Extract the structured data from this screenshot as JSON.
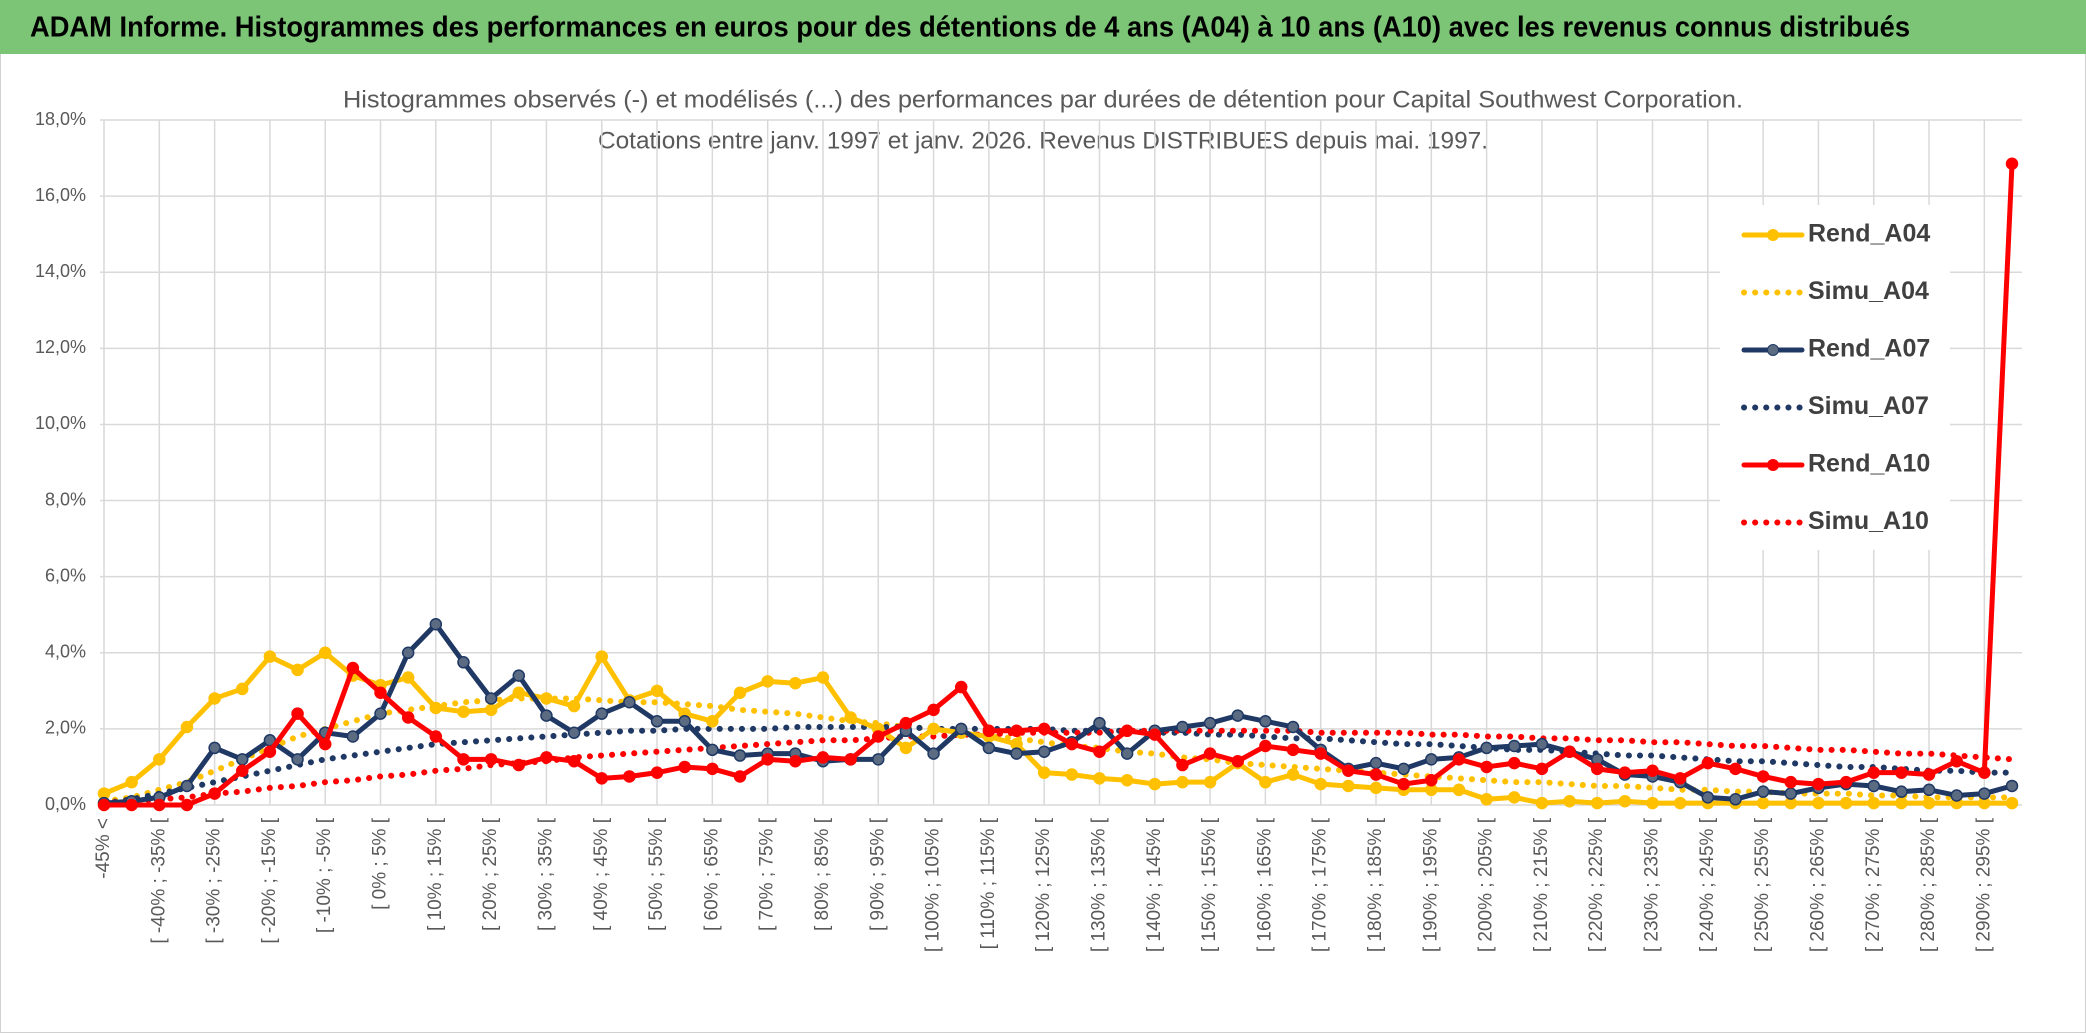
{
  "header": {
    "title": "ADAM Informe. Histogrammes des performances en euros pour des détentions de 4 ans (A04) à 10 ans (A10) avec les revenus connus distribués"
  },
  "chart_data": {
    "type": "line",
    "title": "Histogrammes observés (-) et modélisés (...) des performances par durées de détention pour Capital Southwest Corporation.",
    "subtitle": "Cotations entre janv. 1997 et janv. 2026. Revenus DISTRIBUES depuis mai. 1997.",
    "categories": [
      "-45% <",
      null,
      "[ -40% ; -35% [",
      null,
      "[ -30% ; -25% [",
      null,
      "[ -20% ; -15% [",
      null,
      "[ -10% ; -5% [",
      null,
      "[ 0% ; 5% [",
      null,
      "[ 10% ; 15% [",
      null,
      "[ 20% ; 25% [",
      null,
      "[ 30% ; 35% [",
      null,
      "[ 40% ; 45% [",
      null,
      "[ 50% ; 55% [",
      null,
      "[ 60% ; 65% [",
      null,
      "[ 70% ; 75% [",
      null,
      "[ 80% ; 85% [",
      null,
      "[ 90% ; 95% [",
      null,
      "[ 100% ; 105% [",
      null,
      "[ 110% ; 115% [",
      null,
      "[ 120% ; 125% [",
      null,
      "[ 130% ; 135% [",
      null,
      "[ 140% ; 145% [",
      null,
      "[ 150% ; 155% [",
      null,
      "[ 160% ; 165% [",
      null,
      "[ 170% ; 175% [",
      null,
      "[ 180% ; 185% [",
      null,
      "[ 190% ; 195% [",
      null,
      "[ 200% ; 205% [",
      null,
      "[ 210% ; 215% [",
      null,
      "[ 220% ; 225% [",
      null,
      "[ 230% ; 235% [",
      null,
      "[ 240% ; 245% [",
      null,
      "[ 250% ; 255% [",
      null,
      "[ 260% ; 265% [",
      null,
      "[ 270% ; 275% [",
      null,
      "[ 280% ; 285% [",
      null,
      "[ 290% ; 295% [",
      null
    ],
    "series": [
      {
        "name": "Rend_A04",
        "color": "#FFC000",
        "line_style": "solid",
        "marker": true,
        "values": [
          0.3,
          0.6,
          1.2,
          2.05,
          2.8,
          3.05,
          3.9,
          3.55,
          4.0,
          3.4,
          3.15,
          3.35,
          2.55,
          2.45,
          2.5,
          2.95,
          2.8,
          2.6,
          3.9,
          2.75,
          3.0,
          2.4,
          2.2,
          2.95,
          3.25,
          3.2,
          3.35,
          2.3,
          2.0,
          1.5,
          2.0,
          1.9,
          1.8,
          1.6,
          0.85,
          0.8,
          0.7,
          0.65,
          0.55,
          0.6,
          0.6,
          1.1,
          0.6,
          0.8,
          0.55,
          0.5,
          0.45,
          0.4,
          0.4,
          0.4,
          0.15,
          0.2,
          0.05,
          0.1,
          0.05,
          0.1,
          0.05,
          0.05,
          0.05,
          0.05,
          0.05,
          0.05,
          0.05,
          0.05,
          0.05,
          0.05,
          0.05,
          0.05,
          0.05,
          0.05
        ]
      },
      {
        "name": "Simu_A04",
        "color": "#FFC000",
        "line_style": "dotted",
        "marker": false,
        "values": [
          0.1,
          0.2,
          0.4,
          0.6,
          0.9,
          1.2,
          1.5,
          1.8,
          2.0,
          2.2,
          2.4,
          2.5,
          2.6,
          2.7,
          2.75,
          2.8,
          2.8,
          2.8,
          2.75,
          2.7,
          2.7,
          2.65,
          2.6,
          2.5,
          2.45,
          2.4,
          2.3,
          2.2,
          2.15,
          2.05,
          2.0,
          1.9,
          1.8,
          1.75,
          1.65,
          1.55,
          1.5,
          1.4,
          1.35,
          1.25,
          1.2,
          1.1,
          1.05,
          1.0,
          0.95,
          0.9,
          0.85,
          0.8,
          0.75,
          0.7,
          0.65,
          0.6,
          0.6,
          0.55,
          0.5,
          0.5,
          0.45,
          0.4,
          0.4,
          0.35,
          0.35,
          0.3,
          0.3,
          0.3,
          0.25,
          0.25,
          0.2,
          0.2,
          0.2,
          0.2
        ]
      },
      {
        "name": "Rend_A07",
        "color": "#1F3864",
        "line_style": "solid",
        "marker": true,
        "values": [
          0.05,
          0.1,
          0.2,
          0.5,
          1.5,
          1.2,
          1.7,
          1.2,
          1.9,
          1.8,
          2.4,
          4.0,
          4.75,
          3.75,
          2.8,
          3.4,
          2.35,
          1.9,
          2.4,
          2.7,
          2.2,
          2.2,
          1.45,
          1.3,
          1.35,
          1.35,
          1.15,
          1.2,
          1.2,
          1.95,
          1.35,
          2.0,
          1.5,
          1.35,
          1.4,
          1.65,
          2.15,
          1.35,
          1.95,
          2.05,
          2.15,
          2.35,
          2.2,
          2.05,
          1.45,
          0.95,
          1.1,
          0.95,
          1.2,
          1.25,
          1.5,
          1.55,
          1.6,
          1.4,
          1.2,
          0.8,
          0.75,
          0.6,
          0.2,
          0.15,
          0.35,
          0.3,
          0.45,
          0.55,
          0.5,
          0.35,
          0.4,
          0.25,
          0.3,
          0.5
        ]
      },
      {
        "name": "Simu_A07",
        "color": "#1F3864",
        "line_style": "dotted",
        "marker": false,
        "values": [
          0.05,
          0.15,
          0.3,
          0.45,
          0.6,
          0.75,
          0.9,
          1.05,
          1.2,
          1.3,
          1.4,
          1.5,
          1.6,
          1.65,
          1.7,
          1.75,
          1.8,
          1.85,
          1.9,
          1.95,
          1.95,
          2.0,
          2.0,
          2.0,
          2.0,
          2.05,
          2.05,
          2.05,
          2.05,
          2.05,
          2.0,
          2.0,
          2.0,
          2.0,
          2.0,
          1.95,
          1.95,
          1.95,
          1.9,
          1.9,
          1.85,
          1.85,
          1.8,
          1.75,
          1.75,
          1.7,
          1.65,
          1.6,
          1.6,
          1.55,
          1.5,
          1.45,
          1.45,
          1.4,
          1.35,
          1.3,
          1.3,
          1.25,
          1.2,
          1.15,
          1.15,
          1.1,
          1.05,
          1.0,
          1.0,
          0.95,
          0.9,
          0.9,
          0.85,
          0.85
        ]
      },
      {
        "name": "Rend_A10",
        "color": "#FF0000",
        "line_style": "solid",
        "marker": true,
        "values": [
          0,
          0,
          0,
          0,
          0.3,
          0.9,
          1.4,
          2.4,
          1.6,
          3.6,
          2.95,
          2.3,
          1.8,
          1.2,
          1.2,
          1.05,
          1.25,
          1.15,
          0.7,
          0.75,
          0.85,
          1.0,
          0.95,
          0.75,
          1.2,
          1.15,
          1.25,
          1.2,
          1.8,
          2.15,
          2.5,
          3.1,
          1.95,
          1.95,
          2.0,
          1.6,
          1.4,
          1.95,
          1.85,
          1.05,
          1.35,
          1.15,
          1.55,
          1.45,
          1.35,
          0.9,
          0.8,
          0.55,
          0.65,
          1.2,
          1.0,
          1.1,
          0.95,
          1.4,
          0.95,
          0.85,
          0.9,
          0.7,
          1.1,
          0.95,
          0.75,
          0.6,
          0.55,
          0.6,
          0.85,
          0.85,
          0.8,
          1.15,
          0.85,
          16.85
        ]
      },
      {
        "name": "Simu_A10",
        "color": "#FF0000",
        "line_style": "dotted",
        "marker": false,
        "values": [
          0.05,
          0.1,
          0.15,
          0.2,
          0.3,
          0.35,
          0.45,
          0.5,
          0.6,
          0.65,
          0.75,
          0.8,
          0.9,
          0.95,
          1.05,
          1.1,
          1.15,
          1.25,
          1.3,
          1.35,
          1.4,
          1.45,
          1.5,
          1.55,
          1.6,
          1.65,
          1.7,
          1.7,
          1.75,
          1.8,
          1.8,
          1.85,
          1.85,
          1.9,
          1.9,
          1.9,
          1.9,
          1.95,
          1.95,
          1.95,
          1.95,
          1.95,
          1.95,
          1.95,
          1.9,
          1.9,
          1.9,
          1.9,
          1.85,
          1.85,
          1.8,
          1.8,
          1.75,
          1.75,
          1.7,
          1.7,
          1.65,
          1.65,
          1.6,
          1.55,
          1.55,
          1.5,
          1.45,
          1.45,
          1.4,
          1.35,
          1.35,
          1.3,
          1.25,
          1.2
        ]
      }
    ],
    "ylim": [
      0,
      18
    ],
    "yticks": [
      {
        "value": 0,
        "label": "0,0%"
      },
      {
        "value": 2,
        "label": "2,0%"
      },
      {
        "value": 4,
        "label": "4,0%"
      },
      {
        "value": 6,
        "label": "6,0%"
      },
      {
        "value": 8,
        "label": "8,0%"
      },
      {
        "value": 10,
        "label": "10,0%"
      },
      {
        "value": 12,
        "label": "12,0%"
      },
      {
        "value": 14,
        "label": "14,0%"
      },
      {
        "value": 16,
        "label": "16,0%"
      },
      {
        "value": 18,
        "label": "18,0%"
      }
    ],
    "grid": true,
    "legend": "upper right"
  }
}
